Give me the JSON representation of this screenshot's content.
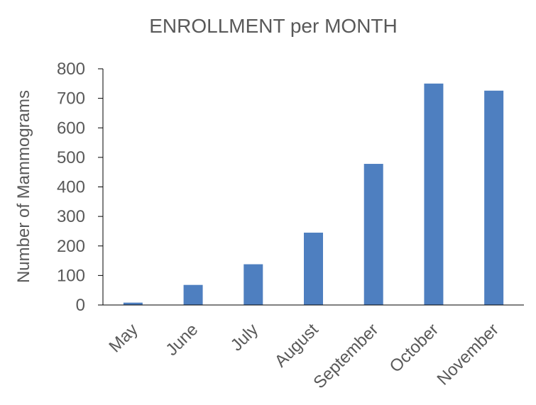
{
  "chart_data": {
    "type": "bar",
    "title": "ENROLLMENT per MONTH",
    "xlabel": "",
    "ylabel": "Number of Mammograms",
    "categories": [
      "May",
      "June",
      "July",
      "August",
      "September",
      "October",
      "November"
    ],
    "values": [
      8,
      68,
      138,
      245,
      478,
      750,
      726
    ],
    "ylim": [
      0,
      800
    ],
    "yticks": [
      "0",
      "100",
      "200",
      "300",
      "400",
      "500",
      "600",
      "700",
      "800"
    ],
    "grid": false,
    "legend": "none",
    "bar_color": "#4E7FC0",
    "axis_color": "#000000",
    "text_color": "#595959"
  }
}
